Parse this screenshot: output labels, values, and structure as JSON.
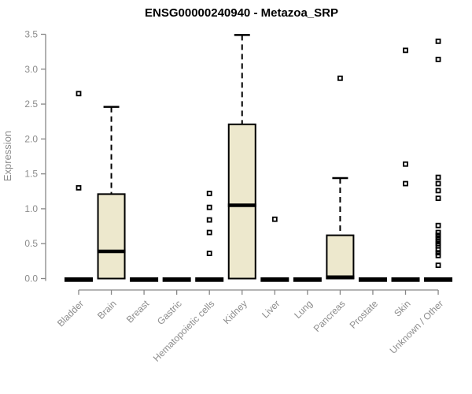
{
  "chart_data": {
    "type": "boxplot",
    "title": "ENSG00000240940 - Metazoa_SRP",
    "xlabel": "",
    "ylabel": "Expression",
    "ylim": [
      0,
      3.5
    ],
    "yticks": [
      "0.0",
      "0.5",
      "1.0",
      "1.5",
      "2.0",
      "2.5",
      "3.0",
      "3.5"
    ],
    "grid": false,
    "legend": "none",
    "colors": {
      "box_fill": "#ede8cd",
      "box_stroke": "#000000",
      "median_stroke": "#000000",
      "whisker_stroke": "#000000",
      "outlier_stroke": "#000000",
      "axis_color": "#878787",
      "tick_label_color": "#8c8c8c",
      "title_color": "#000000",
      "background": "#ffffff"
    },
    "categories": [
      "Bladder",
      "Brain",
      "Breast",
      "Gastric",
      "Hematopoietic cells",
      "Kidney",
      "Liver",
      "Lung",
      "Pancreas",
      "Prostate",
      "Skin",
      "Unknown / Other"
    ],
    "boxes": [
      {
        "category": "Bladder",
        "whisker_low": 0,
        "q1": 0,
        "median": 0,
        "q3": 0,
        "whisker_high": 0,
        "outliers": [
          2.65,
          1.3
        ]
      },
      {
        "category": "Brain",
        "whisker_low": 0,
        "q1": 0,
        "median": 0.39,
        "q3": 1.21,
        "whisker_high": 2.46,
        "outliers": []
      },
      {
        "category": "Breast",
        "whisker_low": 0,
        "q1": 0,
        "median": 0,
        "q3": 0,
        "whisker_high": 0,
        "outliers": []
      },
      {
        "category": "Gastric",
        "whisker_low": 0,
        "q1": 0,
        "median": 0,
        "q3": 0,
        "whisker_high": 0,
        "outliers": []
      },
      {
        "category": "Hematopoietic cells",
        "whisker_low": 0,
        "q1": 0,
        "median": 0,
        "q3": 0,
        "whisker_high": 0,
        "outliers": [
          1.22,
          1.02,
          0.84,
          0.66,
          0.36
        ]
      },
      {
        "category": "Kidney",
        "whisker_low": 0,
        "q1": 0,
        "median": 1.05,
        "q3": 2.21,
        "whisker_high": 3.49,
        "outliers": []
      },
      {
        "category": "Liver",
        "whisker_low": 0,
        "q1": 0,
        "median": 0,
        "q3": 0,
        "whisker_high": 0,
        "outliers": [
          0.85
        ]
      },
      {
        "category": "Lung",
        "whisker_low": 0,
        "q1": 0,
        "median": 0,
        "q3": 0,
        "whisker_high": 0,
        "outliers": []
      },
      {
        "category": "Pancreas",
        "whisker_low": 0,
        "q1": 0,
        "median": 0.02,
        "q3": 0.62,
        "whisker_high": 1.44,
        "outliers": [
          2.87
        ]
      },
      {
        "category": "Prostate",
        "whisker_low": 0,
        "q1": 0,
        "median": 0,
        "q3": 0,
        "whisker_high": 0,
        "outliers": []
      },
      {
        "category": "Skin",
        "whisker_low": 0,
        "q1": 0,
        "median": 0,
        "q3": 0,
        "whisker_high": 0,
        "outliers": [
          3.27,
          1.64,
          1.36
        ]
      },
      {
        "category": "Unknown / Other",
        "whisker_low": 0,
        "q1": 0,
        "median": 0,
        "q3": 0,
        "whisker_high": 0,
        "outliers": [
          3.4,
          3.14,
          1.45,
          1.36,
          1.26,
          1.15,
          0.76,
          0.66,
          0.62,
          0.58,
          0.54,
          0.5,
          0.47,
          0.41,
          0.37,
          0.33,
          0.19
        ]
      }
    ]
  }
}
